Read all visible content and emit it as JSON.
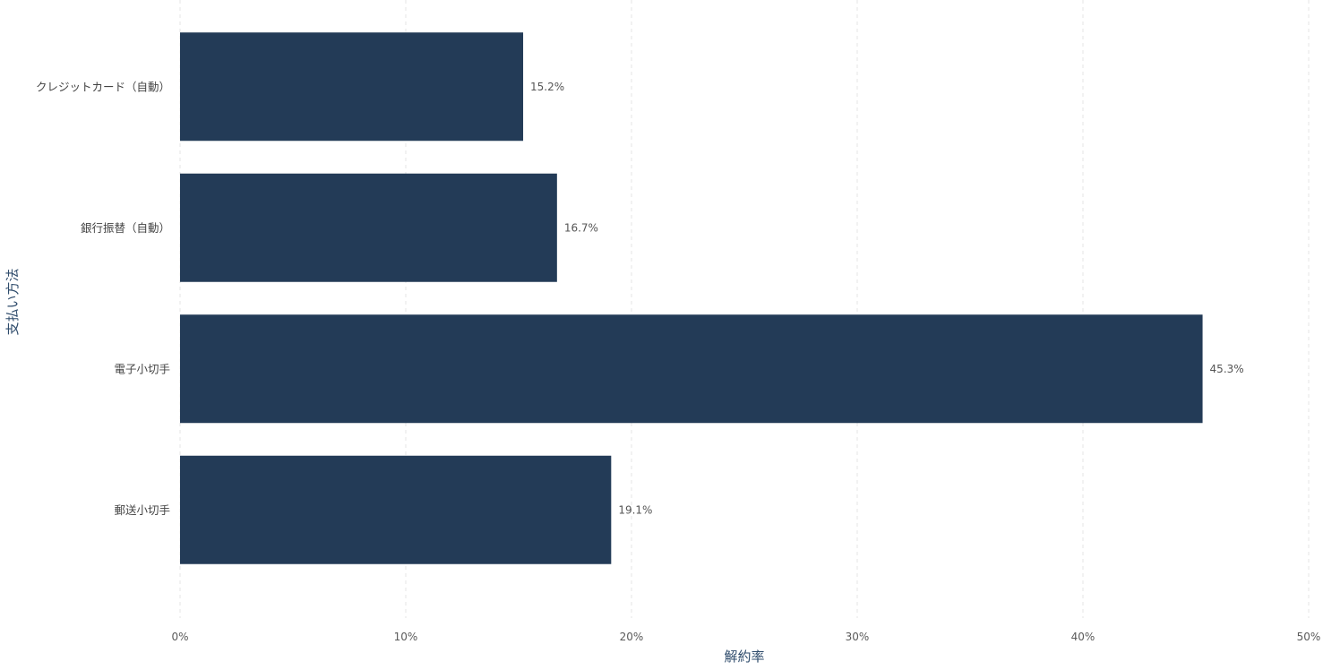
{
  "chart_data": {
    "type": "bar",
    "orientation": "horizontal",
    "categories": [
      "クレジットカード（自動）",
      "銀行振替（自動）",
      "電子小切手",
      "郵送小切手"
    ],
    "values": [
      15.2,
      16.7,
      45.3,
      19.1
    ],
    "data_labels": [
      "15.2%",
      "16.7%",
      "45.3%",
      "19.1%"
    ],
    "xlabel": "解約率",
    "ylabel": "支払い方法",
    "xlim": [
      0,
      50
    ],
    "xticks": [
      0,
      10,
      20,
      30,
      40,
      50
    ],
    "xtick_labels": [
      "0%",
      "10%",
      "20%",
      "30%",
      "40%",
      "50%"
    ],
    "grid": "vertical dashed",
    "legend": "none",
    "bar_color": "#233b57"
  }
}
